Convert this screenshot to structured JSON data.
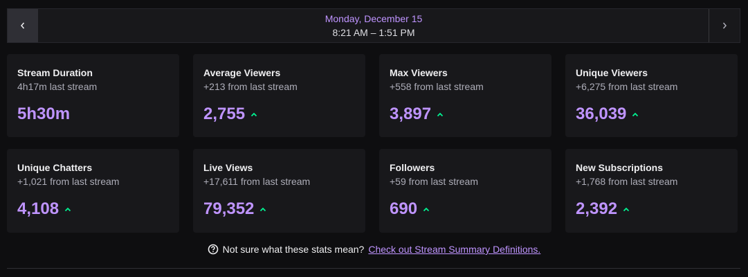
{
  "header": {
    "date": "Monday, December 15",
    "time": "8:21 AM – 1:51 PM"
  },
  "cards": [
    {
      "title": "Stream Duration",
      "subtitle": "4h17m last stream",
      "value": "5h30m"
    },
    {
      "title": "Average Viewers",
      "subtitle": "+213 from last stream",
      "value": "2,755"
    },
    {
      "title": "Max Viewers",
      "subtitle": "+558 from last stream",
      "value": "3,897"
    },
    {
      "title": "Unique Viewers",
      "subtitle": "+6,275 from last stream",
      "value": "36,039"
    },
    {
      "title": "Unique Chatters",
      "subtitle": "+1,021 from last stream",
      "value": "4,108"
    },
    {
      "title": "Live Views",
      "subtitle": "+17,611 from last stream",
      "value": "79,352"
    },
    {
      "title": "Followers",
      "subtitle": "+59 from last stream",
      "value": "690"
    },
    {
      "title": "New Subscriptions",
      "subtitle": "+1,768 from last stream",
      "value": "2,392"
    }
  ],
  "footer": {
    "question": "Not sure what these stats mean?",
    "link": "Check out Stream Summary Definitions."
  }
}
